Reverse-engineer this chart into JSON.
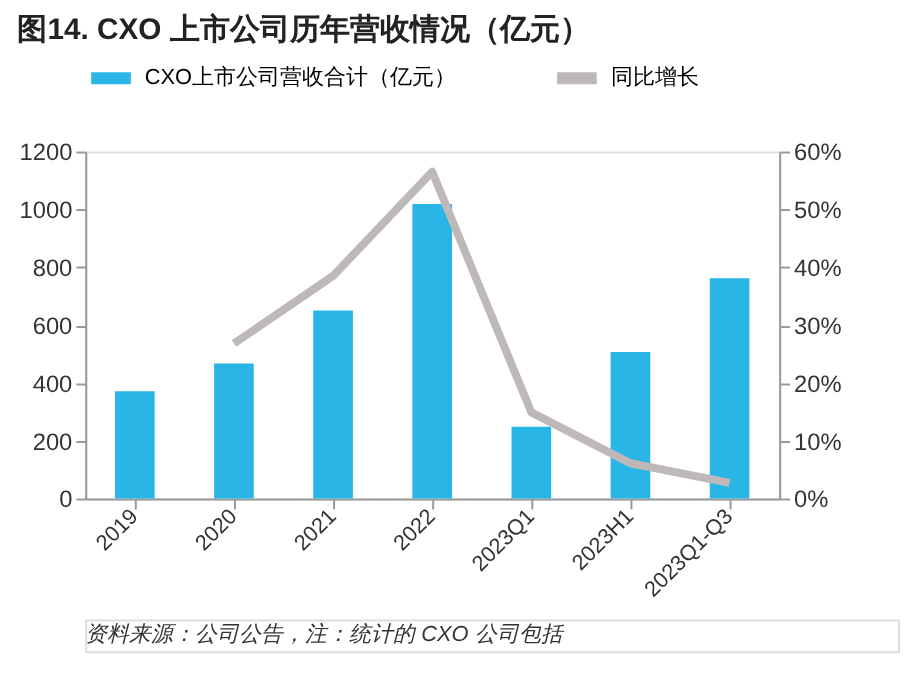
{
  "chart_data": {
    "type": "bar",
    "title": "图14. CXO 上市公司历年营收情况（亿元）",
    "categories": [
      "2019",
      "2020",
      "2021",
      "2022",
      "2023Q1",
      "2023H1",
      "2023Q1-Q3"
    ],
    "series": [
      {
        "name": "CXO上市公司营收合计（亿元）",
        "color": "#29b6e6",
        "values": [
          371,
          467,
          650,
          1019,
          248,
          507,
          762
        ]
      },
      {
        "name": "同比增长",
        "type": "line",
        "axis": "y2",
        "color": "#bfb8b8",
        "values": [
          null,
          26.8,
          38.5,
          56.5,
          14.9,
          6.1,
          2.7
        ]
      }
    ],
    "ylim": [
      0,
      1200
    ],
    "yticks": [
      0,
      200,
      400,
      600,
      800,
      1000,
      1200
    ],
    "y2lim": [
      0,
      60
    ],
    "y2ticks": [
      {
        "value": 0,
        "label": "0%"
      },
      {
        "value": 10,
        "label": "10%"
      },
      {
        "value": 20,
        "label": "20%"
      },
      {
        "value": 30,
        "label": "30%"
      },
      {
        "value": 40,
        "label": "40%"
      },
      {
        "value": 50,
        "label": "50%"
      },
      {
        "value": 60,
        "label": "60%"
      }
    ],
    "grid": false,
    "legend": "top",
    "annotations": [
      "资料来源：公司公告，注：统计的 CXO 公司包括"
    ]
  }
}
